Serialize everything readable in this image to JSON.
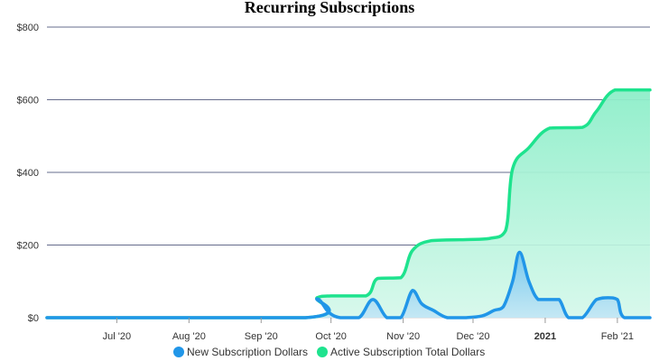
{
  "chart_data": {
    "type": "area",
    "title": "Recurring Subscriptions",
    "y_axis": {
      "ylim": [
        0,
        800
      ],
      "ticks": [
        0,
        200,
        400,
        600,
        800
      ],
      "tick_labels": [
        "$0",
        "$200",
        "$400",
        "$600",
        "$800"
      ],
      "grid": true
    },
    "x_axis": {
      "xlim": [
        "2020-06-01",
        "2021-02-15"
      ],
      "ticks": [
        {
          "date": "2020-07-01",
          "label": "Jul '20",
          "bold": false
        },
        {
          "date": "2020-08-01",
          "label": "Aug '20",
          "bold": false
        },
        {
          "date": "2020-09-01",
          "label": "Sep '20",
          "bold": false
        },
        {
          "date": "2020-10-01",
          "label": "Oct '20",
          "bold": false
        },
        {
          "date": "2020-11-01",
          "label": "Nov '20",
          "bold": false
        },
        {
          "date": "2020-12-01",
          "label": "Dec '20",
          "bold": false
        },
        {
          "date": "2021-01-01",
          "label": "2021",
          "bold": true
        },
        {
          "date": "2021-02-01",
          "label": "Feb '21",
          "bold": false
        }
      ]
    },
    "legend_position": "bottom",
    "series": [
      {
        "name": "New Subscription Dollars",
        "color": "#2196e8",
        "fill": "#a9d9f3",
        "points": [
          [
            "2020-06-01",
            0
          ],
          [
            "2020-09-20",
            0
          ],
          [
            "2020-09-25",
            52
          ],
          [
            "2020-09-30",
            15
          ],
          [
            "2020-10-05",
            0
          ],
          [
            "2020-10-13",
            0
          ],
          [
            "2020-10-19",
            50
          ],
          [
            "2020-10-25",
            0
          ],
          [
            "2020-10-31",
            0
          ],
          [
            "2020-11-05",
            75
          ],
          [
            "2020-11-09",
            38
          ],
          [
            "2020-11-14",
            20
          ],
          [
            "2020-11-20",
            0
          ],
          [
            "2020-11-28",
            0
          ],
          [
            "2020-12-05",
            5
          ],
          [
            "2020-12-10",
            20
          ],
          [
            "2020-12-14",
            30
          ],
          [
            "2020-12-18",
            100
          ],
          [
            "2020-12-21",
            180
          ],
          [
            "2020-12-25",
            100
          ],
          [
            "2020-12-29",
            50
          ],
          [
            "2021-01-03",
            50
          ],
          [
            "2021-01-07",
            50
          ],
          [
            "2021-01-11",
            0
          ],
          [
            "2021-01-17",
            0
          ],
          [
            "2021-01-23",
            50
          ],
          [
            "2021-01-28",
            55
          ],
          [
            "2021-02-01",
            50
          ],
          [
            "2021-02-04",
            0
          ],
          [
            "2021-02-15",
            0
          ]
        ]
      },
      {
        "name": "Active Subscription Total Dollars",
        "color": "#1ee38e",
        "fill": "#a8f0d2",
        "points": [
          [
            "2020-06-01",
            0
          ],
          [
            "2020-09-20",
            0
          ],
          [
            "2020-09-25",
            55
          ],
          [
            "2020-10-01",
            60
          ],
          [
            "2020-10-16",
            60
          ],
          [
            "2020-10-21",
            108
          ],
          [
            "2020-10-31",
            110
          ],
          [
            "2020-11-05",
            185
          ],
          [
            "2020-11-13",
            212
          ],
          [
            "2020-11-28",
            215
          ],
          [
            "2020-12-08",
            218
          ],
          [
            "2020-12-15",
            240
          ],
          [
            "2020-12-18",
            410
          ],
          [
            "2020-12-25",
            468
          ],
          [
            "2021-01-03",
            522
          ],
          [
            "2021-01-17",
            524
          ],
          [
            "2021-01-23",
            568
          ],
          [
            "2021-01-31",
            627
          ],
          [
            "2021-02-15",
            627
          ]
        ]
      }
    ]
  }
}
